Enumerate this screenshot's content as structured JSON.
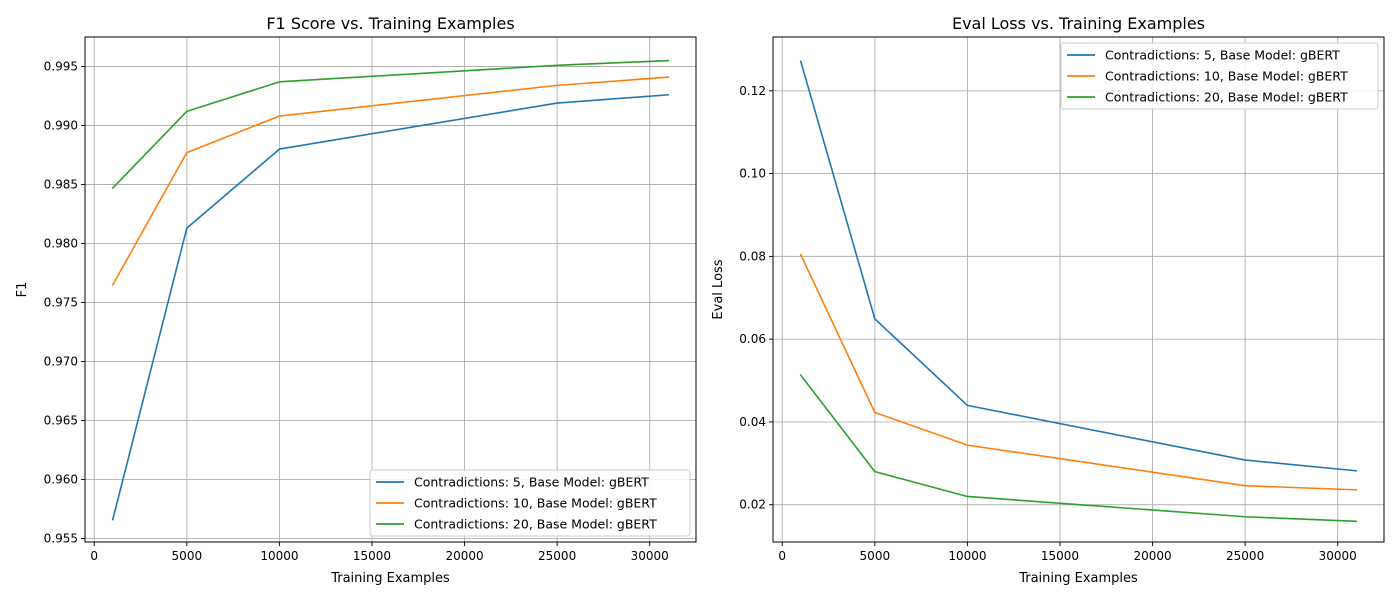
{
  "colors": {
    "series": [
      "#1f77b4",
      "#ff7f0e",
      "#2ca02c"
    ],
    "grid": "#b0b0b0"
  },
  "chart_data": [
    {
      "type": "line",
      "title": "F1 Score vs. Training Examples",
      "xlabel": "Training Examples",
      "ylabel": "F1",
      "xlim": [
        -500,
        32500
      ],
      "ylim": [
        0.9547,
        0.9975
      ],
      "xticks": [
        0,
        5000,
        10000,
        15000,
        20000,
        25000,
        30000
      ],
      "yticks": [
        0.955,
        0.96,
        0.965,
        0.97,
        0.975,
        0.98,
        0.985,
        0.99,
        0.995
      ],
      "ytick_labels": [
        "0.955",
        "0.960",
        "0.965",
        "0.970",
        "0.975",
        "0.980",
        "0.985",
        "0.990",
        "0.995"
      ],
      "grid": true,
      "legend_position": "bottom-right",
      "x": [
        1000,
        5000,
        10000,
        25000,
        31000
      ],
      "series": [
        {
          "name": "Contradictions: 5, Base Model: gBERT",
          "values": [
            0.9566,
            0.9813,
            0.988,
            0.9919,
            0.9926
          ]
        },
        {
          "name": "Contradictions: 10, Base Model: gBERT",
          "values": [
            0.9765,
            0.9877,
            0.9908,
            0.9934,
            0.9941
          ]
        },
        {
          "name": "Contradictions: 20, Base Model: gBERT",
          "values": [
            0.9847,
            0.9912,
            0.9937,
            0.9951,
            0.9955
          ]
        }
      ]
    },
    {
      "type": "line",
      "title": "Eval Loss vs. Training Examples",
      "xlabel": "Training Examples",
      "ylabel": "Eval Loss",
      "xlim": [
        -500,
        32500
      ],
      "ylim": [
        0.011,
        0.133
      ],
      "xticks": [
        0,
        5000,
        10000,
        15000,
        20000,
        25000,
        30000
      ],
      "yticks": [
        0.02,
        0.04,
        0.06,
        0.08,
        0.1,
        0.12
      ],
      "ytick_labels": [
        "0.02",
        "0.04",
        "0.06",
        "0.08",
        "0.10",
        "0.12"
      ],
      "grid": true,
      "legend_position": "top-right",
      "x": [
        1000,
        5000,
        10000,
        25000,
        31000
      ],
      "series": [
        {
          "name": "Contradictions: 5, Base Model: gBERT",
          "values": [
            0.1271,
            0.0649,
            0.044,
            0.0308,
            0.0282
          ]
        },
        {
          "name": "Contradictions: 10, Base Model: gBERT",
          "values": [
            0.0804,
            0.0423,
            0.0344,
            0.0246,
            0.0236
          ]
        },
        {
          "name": "Contradictions: 20, Base Model: gBERT",
          "values": [
            0.0513,
            0.028,
            0.022,
            0.0171,
            0.016
          ]
        }
      ]
    }
  ]
}
